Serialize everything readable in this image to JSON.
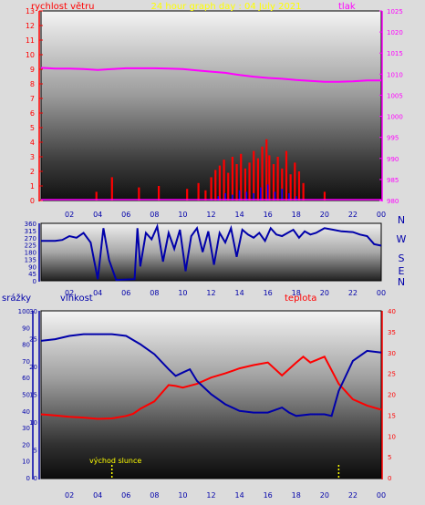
{
  "chart_data": [
    {
      "type": "bar",
      "panel": "wind-pressure",
      "title": "24 hour graph day : 04 July 2021",
      "left_axis_label": "rychlost větru",
      "right_axis_label": "tlak",
      "left_ylim": [
        0,
        13
      ],
      "right_ylim": [
        980,
        1025
      ],
      "left_ticks": [
        0,
        1,
        2,
        3,
        4,
        5,
        6,
        7,
        8,
        9,
        10,
        11,
        12,
        13
      ],
      "right_ticks": [
        980,
        985,
        990,
        995,
        1000,
        1005,
        1010,
        1015,
        1020,
        1025
      ],
      "x_ticks": [
        "02",
        "04",
        "06",
        "08",
        "10",
        "12",
        "14",
        "16",
        "18",
        "20",
        "22",
        "00"
      ],
      "pressure": {
        "hours": [
          0,
          1,
          2,
          3,
          4,
          5,
          6,
          7,
          8,
          9,
          10,
          11,
          12,
          13,
          14,
          15,
          16,
          17,
          18,
          19,
          20,
          21,
          22,
          23,
          24
        ],
        "values": [
          1011.5,
          1011.3,
          1011.3,
          1011.2,
          1011.0,
          1011.2,
          1011.4,
          1011.4,
          1011.4,
          1011.3,
          1011.2,
          1010.9,
          1010.6,
          1010.3,
          1009.8,
          1009.4,
          1009.1,
          1008.9,
          1008.6,
          1008.4,
          1008.2,
          1008.2,
          1008.3,
          1008.5,
          1008.5
        ],
        "color": "#ff00ff"
      },
      "gust_color": "#ff0000",
      "wind_color": "#0000ff",
      "gusts": {
        "hours": [
          3.9,
          5.0,
          6.9,
          8.3,
          10.3,
          11.1,
          11.6,
          12.0,
          12.3,
          12.6,
          12.9,
          13.2,
          13.5,
          13.8,
          14.1,
          14.4,
          14.7,
          15.0,
          15.3,
          15.6,
          15.9,
          16.1,
          16.4,
          16.7,
          17.0,
          17.3,
          17.6,
          17.9,
          18.2,
          18.5,
          20.0
        ],
        "values": [
          0.6,
          1.6,
          0.9,
          1.0,
          0.8,
          1.2,
          0.7,
          1.6,
          2.1,
          2.4,
          2.8,
          1.9,
          3.0,
          2.5,
          3.2,
          2.2,
          2.6,
          3.4,
          2.9,
          3.7,
          4.2,
          3.1,
          2.5,
          3.0,
          2.2,
          3.4,
          1.8,
          2.6,
          2.0,
          1.2,
          0.6
        ]
      },
      "wind_avg": {
        "hours": [
          12.0,
          12.5,
          13.0,
          13.5,
          14.0,
          14.5,
          15.0,
          15.5,
          16.0,
          16.5,
          17.0,
          17.5,
          18.0
        ],
        "values": [
          0.1,
          0.3,
          0.5,
          0.4,
          0.7,
          0.6,
          0.5,
          0.9,
          1.1,
          0.6,
          0.8,
          0.5,
          0.3
        ]
      }
    },
    {
      "type": "line",
      "panel": "wind-direction",
      "ylim": [
        0,
        360
      ],
      "y_ticks": [
        0,
        45,
        90,
        135,
        180,
        225,
        270,
        315,
        360
      ],
      "right_labels": [
        "N",
        "W",
        "S",
        "E",
        "N"
      ],
      "x_ticks": [
        "02",
        "04",
        "06",
        "08",
        "10",
        "12",
        "14",
        "16",
        "18",
        "20",
        "22",
        "00"
      ],
      "color": "#0000aa",
      "direction": {
        "hours": [
          0,
          1,
          1.5,
          2.0,
          2.5,
          3.0,
          3.5,
          4.0,
          4.4,
          4.8,
          5.3,
          6.6,
          6.8,
          7.0,
          7.4,
          7.8,
          8.2,
          8.6,
          9.0,
          9.4,
          9.8,
          10.2,
          10.6,
          11.0,
          11.4,
          11.8,
          12.2,
          12.6,
          13.0,
          13.4,
          13.8,
          14.2,
          14.6,
          15.0,
          15.4,
          15.8,
          16.2,
          16.6,
          17.0,
          17.4,
          17.8,
          18.2,
          18.6,
          19.0,
          19.4,
          20.0,
          20.6,
          21.2,
          22.0,
          22.5,
          23.0,
          23.5,
          24.0
        ],
        "values": [
          250,
          250,
          256,
          280,
          270,
          300,
          240,
          10,
          330,
          130,
          5,
          10,
          330,
          90,
          300,
          260,
          340,
          120,
          300,
          200,
          320,
          60,
          280,
          330,
          180,
          310,
          100,
          300,
          240,
          330,
          150,
          320,
          290,
          270,
          300,
          250,
          330,
          290,
          280,
          300,
          320,
          270,
          310,
          290,
          300,
          330,
          320,
          310,
          305,
          290,
          280,
          230,
          220
        ]
      }
    },
    {
      "type": "line",
      "panel": "humidity-temperature",
      "left_axis_label_1": "srážky",
      "left_axis_label_2": "vlhkost",
      "right_axis_label": "teplota",
      "rain_ticks": [
        0,
        10,
        20,
        30,
        40,
        50,
        60,
        70,
        80,
        90,
        100
      ],
      "humidity_ticks": [
        0,
        5,
        10,
        15,
        20,
        25,
        30
      ],
      "temp_ticks": [
        0,
        5,
        10,
        15,
        20,
        25,
        30,
        35,
        40
      ],
      "x_ticks": [
        "02",
        "04",
        "06",
        "08",
        "10",
        "12",
        "14",
        "16",
        "18",
        "20",
        "22",
        "00"
      ],
      "humidity": {
        "hours": [
          0,
          1,
          2,
          3,
          4,
          5,
          6,
          7,
          8,
          9,
          9.5,
          10,
          10.5,
          11,
          12,
          13,
          14,
          15,
          16,
          17,
          17.5,
          18,
          19,
          20,
          20.5,
          21,
          22,
          23,
          24
        ],
        "values": [
          82,
          83,
          85,
          86,
          86,
          86,
          85,
          80,
          74,
          65,
          61,
          63,
          65,
          58,
          50,
          44,
          40,
          39,
          39,
          42,
          39,
          37,
          38,
          38,
          37,
          52,
          70,
          76,
          75
        ],
        "color": "#0000aa"
      },
      "temperature": {
        "hours": [
          0,
          1,
          2,
          3,
          4,
          5,
          6,
          6.5,
          7,
          8,
          9,
          9.5,
          10,
          11,
          12,
          13,
          14,
          15,
          16,
          17,
          18,
          18.5,
          19,
          20,
          21,
          22,
          23,
          24
        ],
        "values": [
          15.2,
          14.9,
          14.6,
          14.4,
          14.1,
          14.2,
          14.8,
          15.3,
          16.5,
          18.3,
          22.2,
          22.0,
          21.6,
          22.5,
          24.0,
          25.0,
          26.2,
          27.0,
          27.6,
          24.5,
          27.6,
          29.0,
          27.6,
          29.0,
          22.5,
          18.8,
          17.3,
          16.3
        ],
        "color": "#ff0000"
      },
      "annotation": "východ slunce",
      "sunrise_hour": 5.0,
      "sunset_hour": 21.0,
      "marker_color": "#ffff00"
    }
  ]
}
